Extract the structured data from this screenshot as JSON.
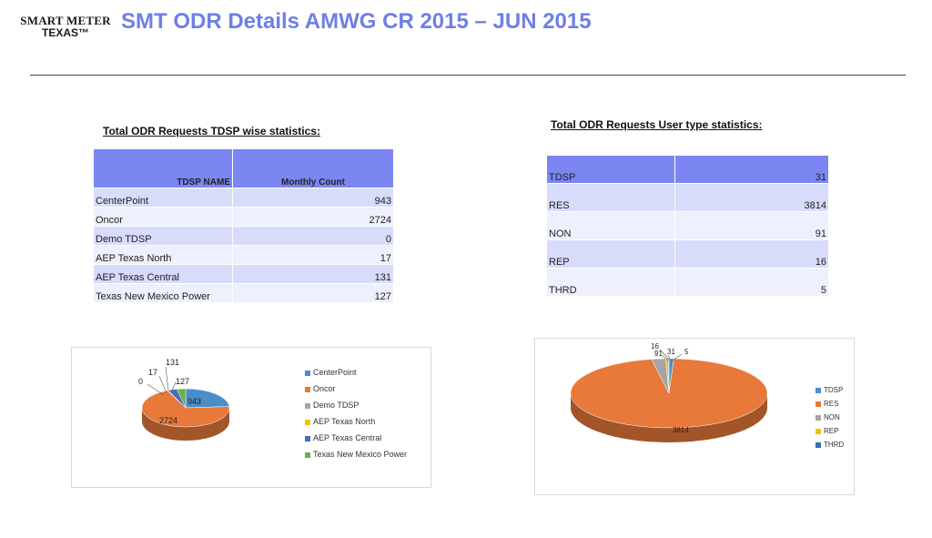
{
  "header": {
    "logo_line1": "SMART METER",
    "logo_line2": "TEXAS™",
    "title": "SMT ODR Details  AMWG CR 2015  – JUN 2015"
  },
  "tdsp_section": {
    "title": "Total ODR Requests TDSP wise statistics:",
    "headers": [
      "TDSP NAME",
      "Monthly Count"
    ],
    "rows": [
      {
        "name": "CenterPoint",
        "count": "943"
      },
      {
        "name": "Oncor",
        "count": "2724"
      },
      {
        "name": "Demo TDSP",
        "count": "0"
      },
      {
        "name": "AEP Texas North",
        "count": "17"
      },
      {
        "name": "AEP Texas Central",
        "count": "131"
      },
      {
        "name": "Texas New Mexico Power",
        "count": "127"
      }
    ]
  },
  "user_section": {
    "title": "Total ODR Requests User type statistics:",
    "rows": [
      {
        "name": "TDSP",
        "count": "31"
      },
      {
        "name": "RES",
        "count": "3814"
      },
      {
        "name": "NON",
        "count": "91"
      },
      {
        "name": "REP",
        "count": "16"
      },
      {
        "name": "THRD",
        "count": "5"
      }
    ]
  },
  "chart_data": [
    {
      "type": "pie",
      "title": "",
      "categories": [
        "CenterPoint",
        "Oncor",
        "Demo TDSP",
        "AEP Texas North",
        "AEP Texas Central",
        "Texas New Mexico Power"
      ],
      "values": [
        943,
        2724,
        0,
        17,
        131,
        127
      ],
      "labels": [
        "943",
        "2724",
        "0",
        "17",
        "131",
        "127"
      ],
      "colors": [
        "#4a8ec9",
        "#e8793a",
        "#a5a5a5",
        "#f2c200",
        "#4a6bc4",
        "#6fad46"
      ],
      "legend_position": "right"
    },
    {
      "type": "pie",
      "title": "",
      "categories": [
        "TDSP",
        "RES",
        "NON",
        "REP",
        "THRD"
      ],
      "values": [
        31,
        3814,
        91,
        16,
        5
      ],
      "labels": [
        "31",
        "3814",
        "91",
        "16",
        "5"
      ],
      "colors": [
        "#4a8ec9",
        "#e8793a",
        "#a5a5a5",
        "#f2c200",
        "#3a6fb5"
      ],
      "legend_position": "right"
    }
  ]
}
